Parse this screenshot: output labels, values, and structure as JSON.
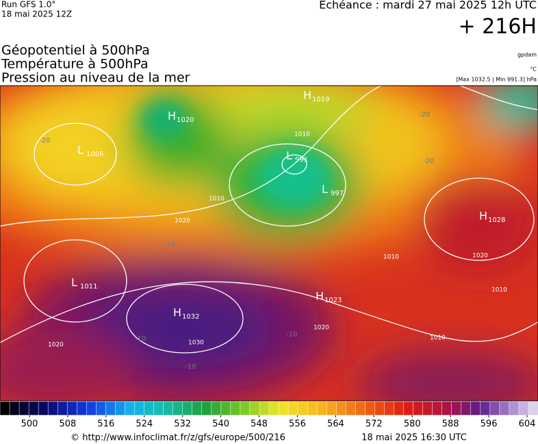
{
  "header": {
    "run": "Run GFS 1.0°",
    "run_date": "18 mai 2025 12Z",
    "echeance": "Echéance : mardi 27 mai 2025 12h UTC",
    "offset": "+ 216H",
    "fields": [
      "Géopotentiel à 500hPa",
      "Température à 500hPa",
      "Pression au niveau de la mer"
    ],
    "unit_geo": "gpdam",
    "unit_temp": "°C",
    "unit_range": "[Max 1032.5 | Min 991.3] hPa"
  },
  "map": {
    "centers": [
      {
        "letter": "H",
        "value": "1020"
      },
      {
        "letter": "H",
        "value": "1019"
      },
      {
        "letter": "L",
        "value": "1006"
      },
      {
        "letter": "L",
        "value": "991"
      },
      {
        "letter": "L",
        "value": "997"
      },
      {
        "letter": "H",
        "value": "1028"
      },
      {
        "letter": "L",
        "value": "1011"
      },
      {
        "letter": "H",
        "value": "1023"
      },
      {
        "letter": "H",
        "value": "1032"
      }
    ],
    "isobar_labels": [
      "1010",
      "1010",
      "1020",
      "1020",
      "1020",
      "1010",
      "1010",
      "1020",
      "1030",
      "1010"
    ],
    "temp_labels": [
      "-20",
      "-20",
      "-20",
      "-10",
      "-10",
      "-10",
      "-10"
    ]
  },
  "colorbar": {
    "ticks": [
      500,
      508,
      516,
      524,
      532,
      540,
      548,
      556,
      564,
      572,
      580,
      588,
      596,
      604
    ]
  },
  "footer": {
    "source": "© http://www.infoclimat.fr/z/gfs/europe/500/216",
    "generated": "18 mai 2025 16:30 UTC"
  }
}
